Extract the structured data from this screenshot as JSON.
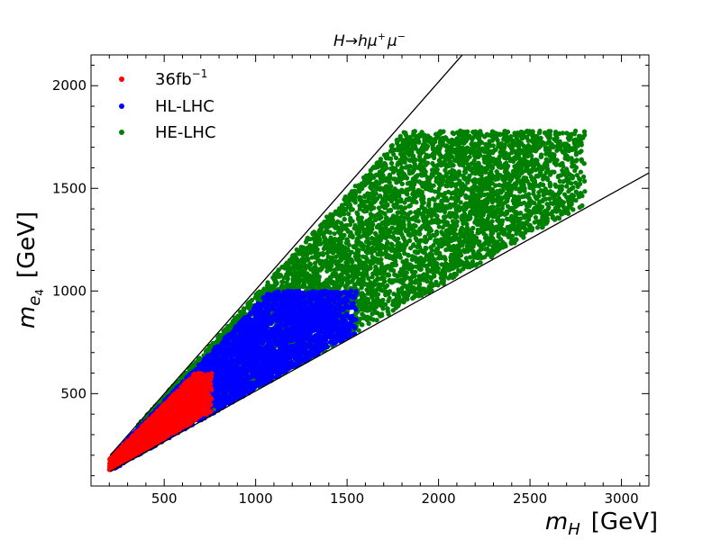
{
  "chart_data": {
    "type": "scatter",
    "title_parts": {
      "H": "H",
      "arrow": "→",
      "h": "h",
      "mu": "μ",
      "plus": "+",
      "minus": "−"
    },
    "xlabel": {
      "var": "m",
      "sub": "H",
      "unit": "[GeV]"
    },
    "ylabel": {
      "var": "m",
      "sub": "e",
      "subsub": "4",
      "unit": "[GeV]"
    },
    "xlim": [
      100,
      3150
    ],
    "ylim": [
      50,
      2150
    ],
    "xticks": [
      500,
      1000,
      1500,
      2000,
      2500,
      3000
    ],
    "yticks": [
      500,
      1000,
      1500,
      2000
    ],
    "grid": false,
    "legend_position": "top-left",
    "boundary_lines": [
      {
        "x": [
          205,
          2130
        ],
        "y": [
          200,
          2150
        ]
      },
      {
        "x": [
          205,
          3150
        ],
        "y": [
          120,
          1575
        ]
      }
    ],
    "series": [
      {
        "name": "HE-LHC",
        "color": "#008000",
        "regions": [
          {
            "x_range": [
              350,
              2800
            ],
            "y_low_slope": 0.5,
            "y_high_slope": 0.98,
            "y_cap": 1780,
            "density": 9000
          }
        ]
      },
      {
        "name": "HL-LHC",
        "color": "#0000ff",
        "regions": [
          {
            "x_range": [
              210,
              1550
            ],
            "y_low_slope": 0.5,
            "y_high_slope": 0.93,
            "y_cap": 1000,
            "density": 6000
          }
        ]
      },
      {
        "name": "36fb",
        "name_sup": "−1",
        "color": "#ff0000",
        "regions": [
          {
            "x_range": [
              200,
              760
            ],
            "y_low_slope": 0.52,
            "y_high_slope": 0.9,
            "y_cap": 600,
            "density": 2200
          }
        ]
      }
    ],
    "legend_order": [
      "36fb",
      "HL-LHC",
      "HE-LHC"
    ]
  }
}
